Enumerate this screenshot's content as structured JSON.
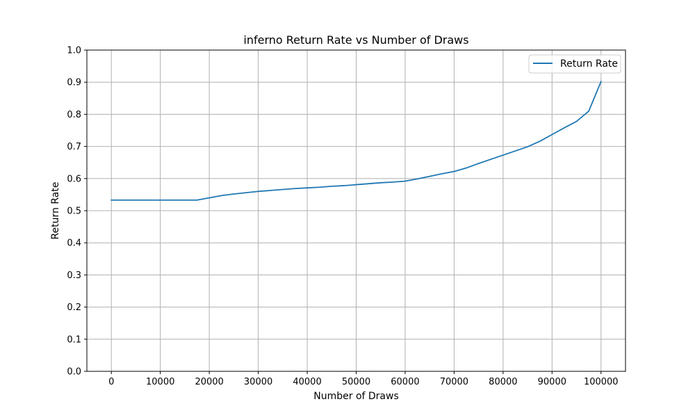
{
  "chart_data": {
    "type": "line",
    "title": "inferno Return Rate vs Number of Draws",
    "xlabel": "Number of Draws",
    "ylabel": "Return Rate",
    "xlim": [
      -5000,
      105000
    ],
    "ylim": [
      0.0,
      1.0
    ],
    "xticks": [
      0,
      10000,
      20000,
      30000,
      40000,
      50000,
      60000,
      70000,
      80000,
      90000,
      100000
    ],
    "yticks": [
      0.0,
      0.1,
      0.2,
      0.3,
      0.4,
      0.5,
      0.6,
      0.7,
      0.8,
      0.9,
      1.0
    ],
    "xtick_labels": [
      "0",
      "10000",
      "20000",
      "30000",
      "40000",
      "50000",
      "60000",
      "70000",
      "80000",
      "90000",
      "100000"
    ],
    "ytick_labels": [
      "0.0",
      "0.1",
      "0.2",
      "0.3",
      "0.4",
      "0.5",
      "0.6",
      "0.7",
      "0.8",
      "0.9",
      "1.0"
    ],
    "grid": true,
    "legend": {
      "placement": "top-right"
    },
    "series": [
      {
        "name": "Return Rate",
        "color": "#1f77b4",
        "x": [
          0,
          2500,
          5000,
          7500,
          10000,
          12500,
          15000,
          17500,
          20000,
          22500,
          25000,
          27500,
          30000,
          32500,
          35000,
          37500,
          40000,
          42500,
          45000,
          47500,
          50000,
          52500,
          55000,
          57500,
          60000,
          62500,
          65000,
          67500,
          70000,
          72500,
          75000,
          77500,
          80000,
          82500,
          85000,
          87500,
          90000,
          92500,
          95000,
          97500,
          100000
        ],
        "y": [
          0.533,
          0.533,
          0.533,
          0.533,
          0.533,
          0.533,
          0.533,
          0.533,
          0.54,
          0.547,
          0.552,
          0.556,
          0.56,
          0.563,
          0.566,
          0.569,
          0.571,
          0.573,
          0.576,
          0.578,
          0.581,
          0.584,
          0.587,
          0.589,
          0.592,
          0.599,
          0.607,
          0.615,
          0.622,
          0.633,
          0.647,
          0.66,
          0.673,
          0.686,
          0.699,
          0.716,
          0.737,
          0.758,
          0.778,
          0.81,
          0.902
        ]
      }
    ]
  }
}
